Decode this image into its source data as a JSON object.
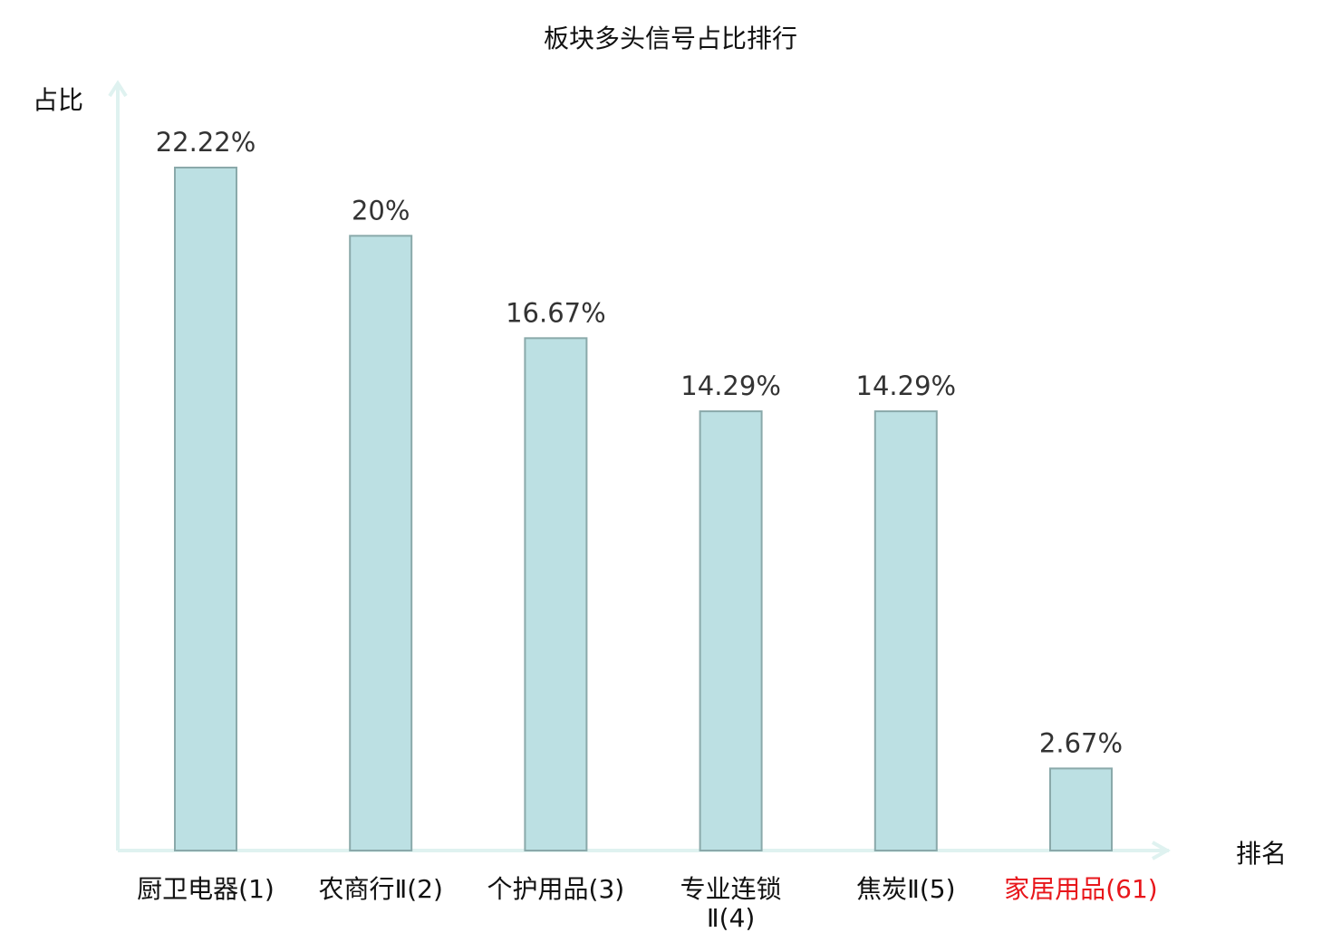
{
  "chart_data": {
    "type": "bar",
    "title": "板块多头信号占比排行",
    "xlabel": "排名",
    "ylabel": "占比",
    "categories": [
      "厨卫电器(1)",
      "农商行Ⅱ(2)",
      "个护用品(3)",
      "专业连锁Ⅱ(4)",
      "焦炭Ⅱ(5)",
      "家居用品(61)"
    ],
    "values": [
      22.22,
      20,
      16.67,
      14.29,
      14.29,
      2.67
    ],
    "data_labels": [
      "22.22%",
      "20%",
      "16.67%",
      "14.29%",
      "14.29%",
      "2.67%"
    ],
    "highlight_index": 5,
    "ylim": [
      0,
      22.22
    ],
    "grid": false,
    "colors": {
      "bar_fill": "#bce0e3",
      "bar_stroke": "#8aa9aa",
      "axis": "#dff2f0",
      "label": "#111111",
      "highlight_label": "#e8161b",
      "value_label": "#333333"
    }
  }
}
